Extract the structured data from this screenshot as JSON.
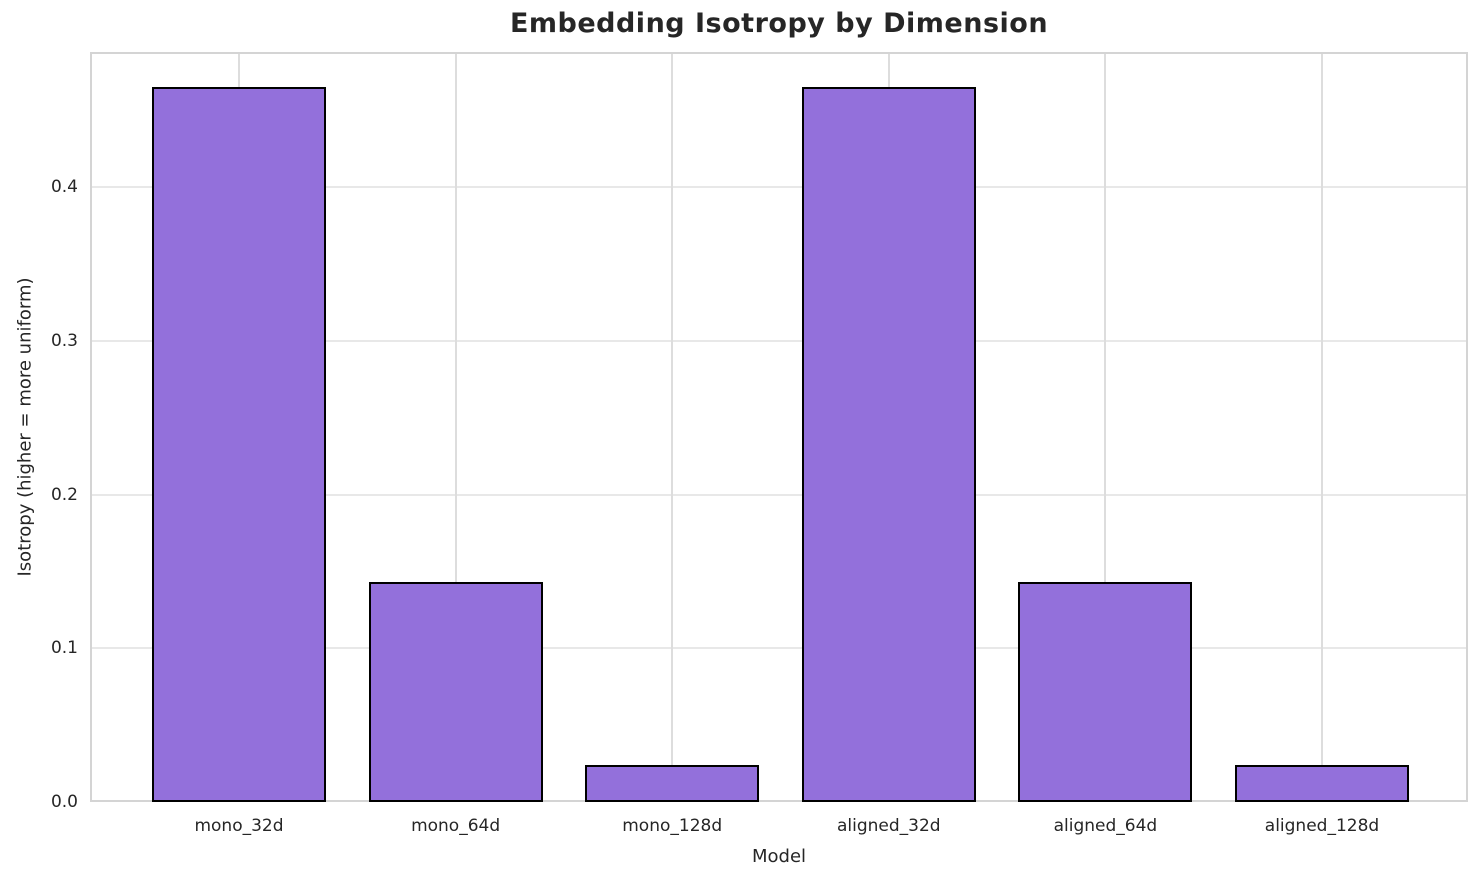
{
  "chart_data": {
    "type": "bar",
    "title": "Embedding Isotropy by Dimension",
    "xlabel": "Model",
    "ylabel": "Isotropy (higher = more uniform)",
    "categories": [
      "mono_32d",
      "mono_64d",
      "mono_128d",
      "aligned_32d",
      "aligned_64d",
      "aligned_128d"
    ],
    "values": [
      0.465,
      0.143,
      0.024,
      0.465,
      0.143,
      0.024
    ],
    "yticks": [
      0.0,
      0.1,
      0.2,
      0.3,
      0.4
    ],
    "ylim": [
      0,
      0.488
    ],
    "grid": true,
    "legend": "none",
    "colors": {
      "bar_fill": "#9370DB",
      "bar_edge": "#000000",
      "grid_h": "#e8e8e8",
      "grid_v": "#dddddd",
      "spine": "#d4d4d4",
      "text": "#262626",
      "background": "#ffffff"
    }
  }
}
